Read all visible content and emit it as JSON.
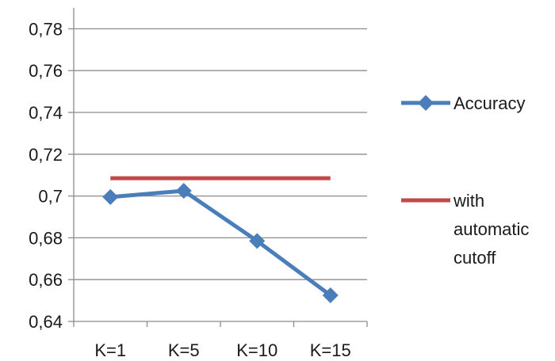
{
  "chart_data": {
    "type": "line",
    "title": "",
    "xlabel": "",
    "ylabel": "",
    "categories": [
      "K=1",
      "K=5",
      "K=10",
      "K=15"
    ],
    "ylim": [
      0.64,
      0.79
    ],
    "yticks": [
      0.64,
      0.66,
      0.68,
      0.7,
      0.72,
      0.74,
      0.76,
      0.78
    ],
    "ytick_labels": [
      "0,64",
      "0,66",
      "0,68",
      "0,7",
      "0,72",
      "0,74",
      "0,76",
      "0,78"
    ],
    "grid": true,
    "legend_position": "right",
    "series": [
      {
        "name": "Accuracy",
        "color": "#4a7ebb",
        "marker": "diamond",
        "values": [
          0.6995,
          0.7025,
          0.6785,
          0.6525
        ]
      },
      {
        "name": "with automatic cutoff",
        "legend_lines": [
          "with",
          "automatic",
          "cutoff"
        ],
        "color": "#be4b48",
        "marker": "none",
        "values": [
          0.7085,
          0.7085,
          0.7085,
          0.7085
        ]
      }
    ]
  }
}
